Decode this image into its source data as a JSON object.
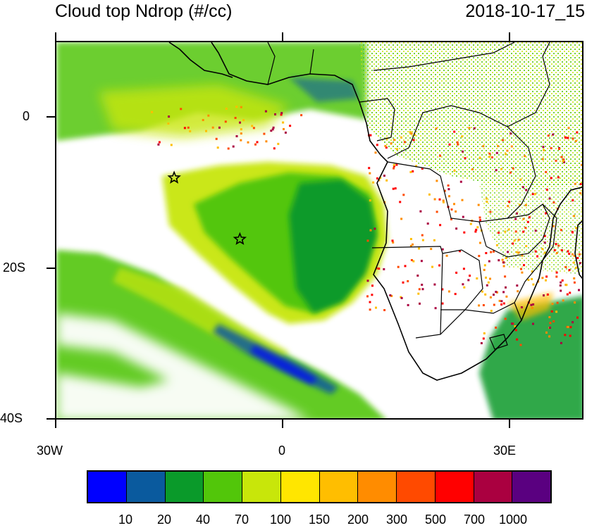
{
  "header": {
    "title": "Cloud top Ndrop (#/cc)",
    "datetime": "2018-10-17_15"
  },
  "map": {
    "lon_range": [
      -30,
      40
    ],
    "lat_range": [
      -40,
      10
    ],
    "lat_labels": [
      {
        "lat": 0,
        "text": "0"
      },
      {
        "lat": -20,
        "text": "20S"
      },
      {
        "lat": -40,
        "text": "40S"
      }
    ],
    "lon_labels": [
      {
        "lon": -30,
        "text": "30W"
      },
      {
        "lon": 0,
        "text": "0"
      },
      {
        "lon": 30,
        "text": "30E"
      }
    ],
    "markers": [
      {
        "type": "star",
        "lon": -14.4,
        "lat": -7.9
      },
      {
        "type": "star",
        "lon": -5.7,
        "lat": -16.0
      }
    ]
  },
  "colorbar": {
    "colors": [
      "#0000ff",
      "#0a5a9e",
      "#0a9a2a",
      "#52c60a",
      "#c8e60a",
      "#ffe600",
      "#ffbe00",
      "#ff8c00",
      "#ff4a00",
      "#ff0000",
      "#aa0040",
      "#5a0080"
    ],
    "labels": [
      "10",
      "20",
      "40",
      "70",
      "100",
      "150",
      "200",
      "300",
      "500",
      "700",
      "1000"
    ]
  }
}
